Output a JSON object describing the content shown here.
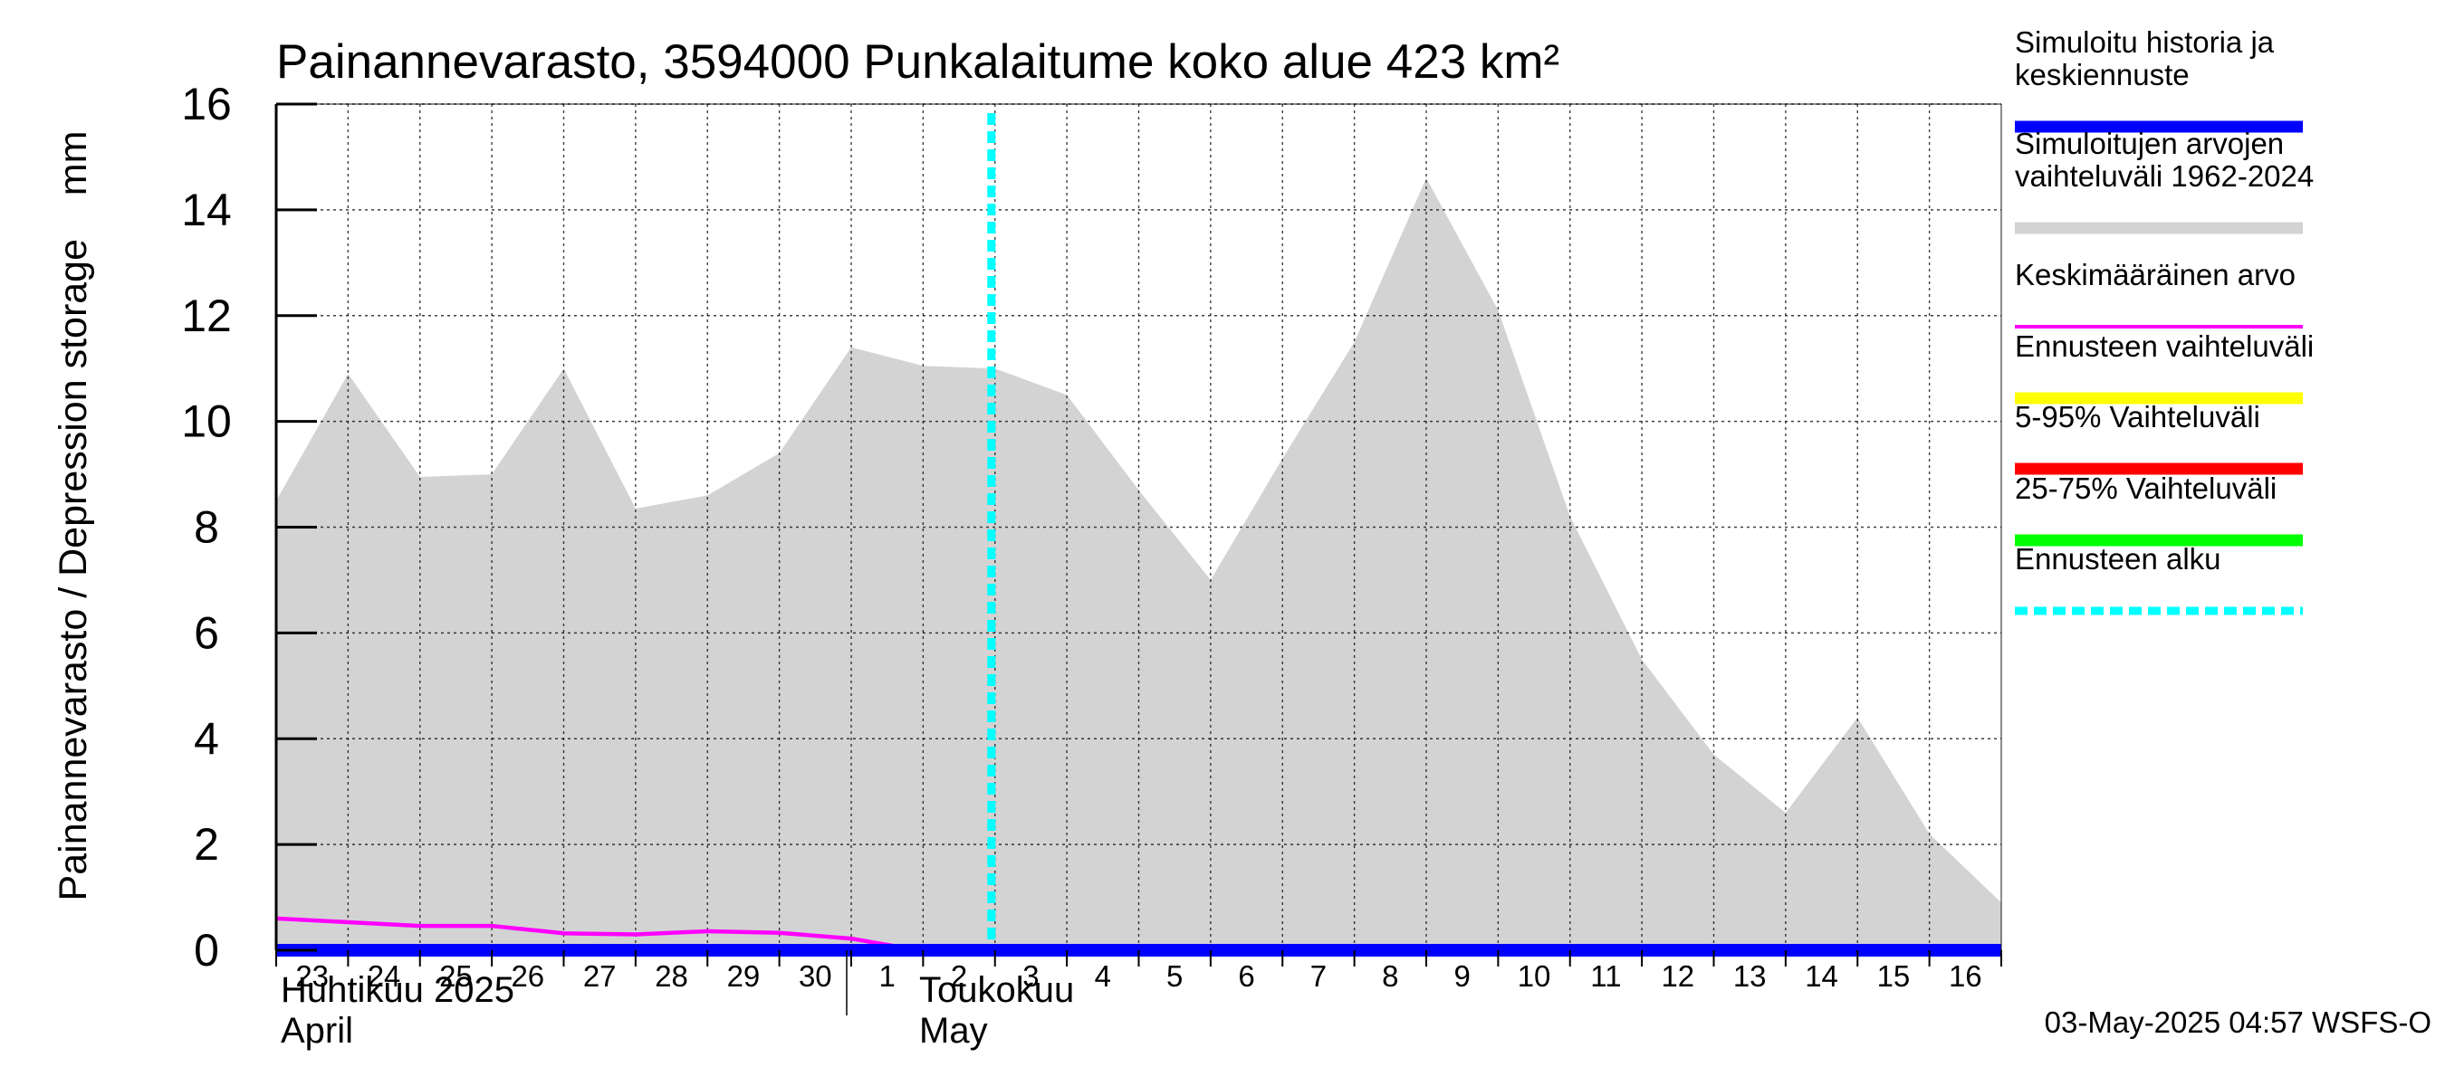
{
  "chart_data": {
    "type": "area",
    "title": "Painannevarasto, 3594000 Punkalaitume koko alue 423 km²",
    "ylabel": "Painannevarasto / Depression storage    mm",
    "ylim": [
      0,
      16
    ],
    "yticks": [
      0,
      2,
      4,
      6,
      8,
      10,
      12,
      14,
      16
    ],
    "xlim_day_index": [
      0,
      24
    ],
    "x_day_labels": [
      "23",
      "24",
      "25",
      "26",
      "27",
      "28",
      "29",
      "30",
      "1",
      "2",
      "3",
      "4",
      "5",
      "6",
      "7",
      "8",
      "9",
      "10",
      "11",
      "12",
      "13",
      "14",
      "15",
      "16"
    ],
    "month_labels": [
      {
        "fi": "Huhtikuu  2025",
        "en": "April",
        "start_day_index": 0
      },
      {
        "fi": "Toukokuu",
        "en": "May",
        "start_day_index": 8
      }
    ],
    "forecast_start_day_index": 9.95,
    "series": [
      {
        "name": "Simuloitujen arvojen vaihteluväli 1962-2024",
        "kind": "band",
        "color": "#d3d3d3",
        "x": [
          0,
          1,
          2,
          3,
          4,
          5,
          6,
          7,
          8,
          9,
          10,
          11,
          12,
          13,
          14,
          15,
          16,
          17,
          18,
          19,
          20,
          21,
          22,
          23,
          24
        ],
        "upper": [
          8.5,
          10.9,
          8.95,
          9.0,
          11.0,
          8.35,
          8.6,
          9.4,
          11.4,
          11.05,
          11.0,
          10.5,
          8.7,
          7.0,
          9.3,
          11.5,
          14.6,
          12.1,
          8.2,
          5.5,
          3.7,
          2.6,
          4.4,
          2.2,
          0.9
        ],
        "lower": [
          0,
          0,
          0,
          0,
          0,
          0,
          0,
          0,
          0,
          0,
          0,
          0,
          0,
          0,
          0,
          0,
          0,
          0,
          0,
          0,
          0,
          0,
          0,
          0,
          0
        ]
      },
      {
        "name": "Keskimääräinen arvo",
        "kind": "line",
        "color": "#ff00ff",
        "x": [
          0,
          1,
          2,
          3,
          4,
          5,
          6,
          7,
          8,
          8.6,
          9,
          10,
          11,
          12,
          13,
          14,
          15,
          16,
          17,
          18,
          19,
          20,
          21,
          22,
          23,
          24
        ],
        "values": [
          0.6,
          0.53,
          0.46,
          0.46,
          0.32,
          0.3,
          0.36,
          0.33,
          0.22,
          0.08,
          0.02,
          0.0,
          0.0,
          0.0,
          0.0,
          0.0,
          0.0,
          0.0,
          0.0,
          0.0,
          0.0,
          0.0,
          0.0,
          0.0,
          0.0,
          0.0
        ]
      },
      {
        "name": "Simuloitu historia ja keskiennuste",
        "kind": "line",
        "color": "#0000ff",
        "x": [
          0,
          24
        ],
        "values": [
          0,
          0
        ]
      }
    ],
    "legend": [
      {
        "label": "Simuloitu historia ja keskiennuste",
        "color": "#0000ff",
        "style": "thick"
      },
      {
        "label": "Simuloitujen arvojen vaihteluväli 1962-2024",
        "color": "#d3d3d3",
        "style": "thick"
      },
      {
        "label": "Keskimääräinen arvo",
        "color": "#ff00ff",
        "style": "thin"
      },
      {
        "label": "Ennusteen vaihteluväli",
        "color": "#ffff00",
        "style": "thick"
      },
      {
        "label": "5-95% Vaihteluväli",
        "color": "#ff0000",
        "style": "thick"
      },
      {
        "label": "25-75% Vaihteluväli",
        "color": "#00ff00",
        "style": "thick"
      },
      {
        "label": "Ennusteen alku",
        "color": "#00ffff",
        "style": "dashed"
      }
    ],
    "legend_position": "right",
    "grid": true,
    "timestamp": "03-May-2025 04:57 WSFS-O"
  }
}
